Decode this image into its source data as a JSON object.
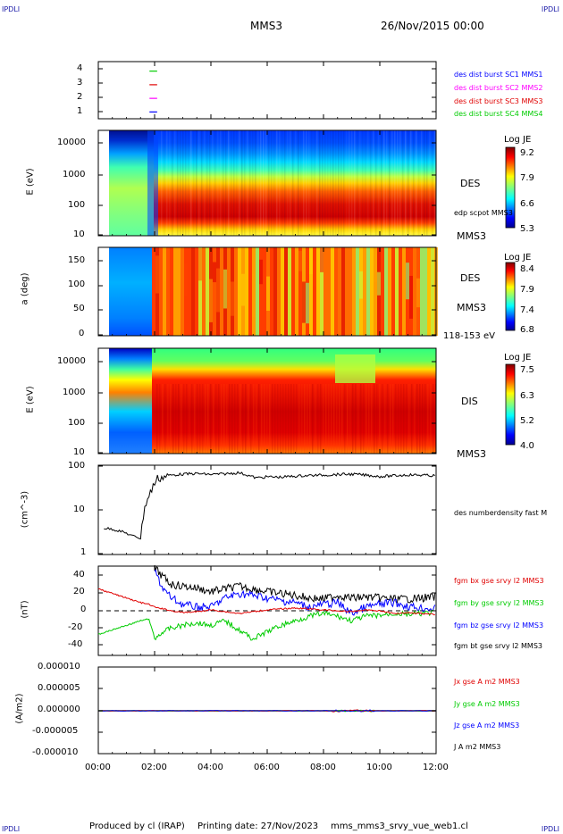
{
  "header": {
    "corner_tl": "IPDLI",
    "corner_tr": "IPDLI",
    "corner_bl": "IPDLI",
    "corner_br": "IPDLI",
    "spacecraft": "MMS3",
    "datetime": "26/Nov/2015 00:00"
  },
  "footer": {
    "produced": "Produced by cl (IRAP)",
    "printing": "Printing date: 27/Nov/2023",
    "filename": "mms_mms3_srvy_vue_web1.cl"
  },
  "colors": {
    "mms1": "#0000ff",
    "mms2": "#ff00ff",
    "mms3": "#e00000",
    "mms4": "#00cc00"
  },
  "chart_data": [
    {
      "type": "line",
      "panel": "burst-indicator",
      "yticks": [
        "4",
        "3",
        "2",
        "1"
      ],
      "legend": [
        {
          "name": "des dist burst SC1 MMS1",
          "color": "#0000ff"
        },
        {
          "name": "des dist burst SC2 MMS2",
          "color": "#ff00ff"
        },
        {
          "name": "des dist burst SC3 MMS3",
          "color": "#e00000"
        },
        {
          "name": "des dist burst SC4 MMS4",
          "color": "#00cc00"
        }
      ],
      "segments": [
        {
          "y": 4,
          "x": [
            1.5,
            1.9
          ],
          "color": "#00cc00"
        },
        {
          "y": 3,
          "x": [
            1.5,
            1.9
          ],
          "color": "#e00000"
        },
        {
          "y": 2,
          "x": [
            1.5,
            1.9
          ],
          "color": "#ff00ff"
        },
        {
          "y": 1,
          "x": [
            1.5,
            1.9
          ],
          "color": "#0000ff"
        }
      ]
    },
    {
      "type": "heatmap",
      "panel": "des-energy",
      "ylabel": "E (eV)",
      "yticks": [
        "10000",
        "1000",
        "100",
        "10"
      ],
      "ylim": [
        10,
        30000
      ],
      "scale": "log",
      "side_label": "DES",
      "overlay_label": "edp scpot MMS3",
      "sc_label": "MMS3",
      "colorbar": {
        "title": "Log JE",
        "ticks": [
          "9.2",
          "7.9",
          "6.6",
          "5.3"
        ],
        "range": [
          5.3,
          9.2
        ]
      }
    },
    {
      "type": "heatmap",
      "panel": "des-pitch",
      "ylabel": "a (deg)",
      "yticks": [
        "150",
        "100",
        "50",
        "0"
      ],
      "ylim": [
        0,
        180
      ],
      "side_label": "DES",
      "sc_label": "MMS3",
      "energy_label": "118-153 eV",
      "colorbar": {
        "title": "Log JE",
        "ticks": [
          "8.4",
          "7.9",
          "7.4",
          "6.8"
        ],
        "range": [
          6.8,
          8.4
        ]
      }
    },
    {
      "type": "heatmap",
      "panel": "dis-energy",
      "ylabel": "E (eV)",
      "yticks": [
        "10000",
        "1000",
        "100",
        "10"
      ],
      "ylim": [
        10,
        30000
      ],
      "scale": "log",
      "side_label": "DIS",
      "sc_label": "MMS3",
      "colorbar": {
        "title": "Log JE",
        "ticks": [
          "7.5",
          "6.3",
          "5.2",
          "4.0"
        ],
        "range": [
          4.0,
          7.5
        ]
      }
    },
    {
      "type": "line",
      "panel": "density",
      "ylabel": "(cm^-3)",
      "yticks": [
        "100",
        "10",
        "1"
      ],
      "ylim": [
        1,
        100
      ],
      "scale": "log",
      "legend": [
        {
          "name": "des numberdensity fast M",
          "color": "#000000"
        }
      ],
      "x": [
        0.2,
        0.5,
        0.8,
        1.0,
        1.2,
        1.35,
        1.5,
        1.55,
        1.65,
        1.8,
        1.95,
        2.1,
        2.3,
        2.6,
        3.0,
        3.5,
        4.0,
        4.5,
        5.0,
        5.3,
        5.6,
        6.0,
        6.5,
        7.0,
        7.5,
        8.0,
        8.5,
        9.0,
        9.5,
        10.0,
        10.5,
        11.0,
        11.5,
        12.0
      ],
      "values": [
        3.9,
        3.7,
        3.3,
        3.0,
        2.6,
        2.5,
        2.3,
        4.5,
        12,
        20,
        35,
        50,
        55,
        60,
        63,
        65,
        62,
        64,
        68,
        60,
        52,
        55,
        54,
        57,
        59,
        60,
        62,
        63,
        60,
        56,
        58,
        61,
        60,
        58
      ]
    },
    {
      "type": "line",
      "panel": "magnetic-field",
      "ylabel": "(nT)",
      "yticks": [
        "40",
        "20",
        "0",
        "-20",
        "-40"
      ],
      "ylim": [
        -48,
        50
      ],
      "legend": [
        {
          "name": "fgm bx gse srvy l2 MMS3",
          "color": "#e00000"
        },
        {
          "name": "fgm by gse srvy l2 MMS3",
          "color": "#00cc00"
        },
        {
          "name": "fgm bz gse srvy l2 MMS3",
          "color": "#0000ff"
        },
        {
          "name": "fgm bt gse srvy l2 MMS3",
          "color": "#000000"
        }
      ],
      "x": [
        0,
        0.5,
        1.0,
        1.5,
        1.8,
        2.0,
        2.3,
        2.6,
        3.0,
        3.5,
        4.0,
        4.5,
        5.0,
        5.5,
        6.0,
        6.5,
        7.0,
        7.5,
        8.0,
        8.5,
        9.0,
        9.5,
        10.0,
        10.5,
        11.0,
        11.5,
        12.0
      ],
      "series": [
        {
          "name": "bx",
          "color": "#e00000",
          "values": [
            25,
            20,
            15,
            10,
            8,
            5,
            3,
            1,
            -1,
            0,
            2,
            0,
            -2,
            0,
            2,
            3,
            4,
            3,
            2,
            1,
            0,
            2,
            1,
            -2,
            -1,
            -2,
            -3
          ]
        },
        {
          "name": "by",
          "color": "#00cc00",
          "values": [
            -25,
            -20,
            -15,
            -10,
            -8,
            -30,
            -22,
            -18,
            -15,
            -12,
            -15,
            -10,
            -20,
            -30,
            -22,
            -15,
            -10,
            -5,
            -2,
            -5,
            -10,
            -5,
            -4,
            -2,
            -3,
            -2,
            -1
          ]
        },
        {
          "name": "bz",
          "color": "#0000ff",
          "values": [
            null,
            null,
            null,
            null,
            null,
            45,
            25,
            15,
            8,
            5,
            5,
            15,
            20,
            18,
            15,
            12,
            10,
            5,
            8,
            10,
            -2,
            5,
            8,
            10,
            6,
            4,
            3
          ]
        },
        {
          "name": "bt",
          "color": "#000000",
          "values": [
            null,
            null,
            null,
            null,
            null,
            48,
            38,
            30,
            28,
            26,
            22,
            25,
            28,
            25,
            22,
            20,
            18,
            15,
            14,
            18,
            15,
            16,
            15,
            14,
            14,
            15,
            16
          ]
        }
      ]
    },
    {
      "type": "line",
      "panel": "current-density",
      "ylabel": "(A/m2)",
      "yticks": [
        "0.000010",
        "0.000005",
        "0.000000",
        "-0.000005",
        "-0.000010"
      ],
      "ylim": [
        -1e-05,
        1e-05
      ],
      "legend": [
        {
          "name": "Jx gse A m2 MMS3",
          "color": "#e00000"
        },
        {
          "name": "Jy gse A m2 MMS3",
          "color": "#00cc00"
        },
        {
          "name": "Jz gse A m2 MMS3",
          "color": "#0000ff"
        },
        {
          "name": "J A m2 MMS3",
          "color": "#000000"
        }
      ]
    }
  ],
  "xaxis": {
    "ticks": [
      "00:00",
      "02:00",
      "04:00",
      "06:00",
      "08:00",
      "10:00",
      "12:00"
    ],
    "range": [
      0,
      12
    ]
  }
}
